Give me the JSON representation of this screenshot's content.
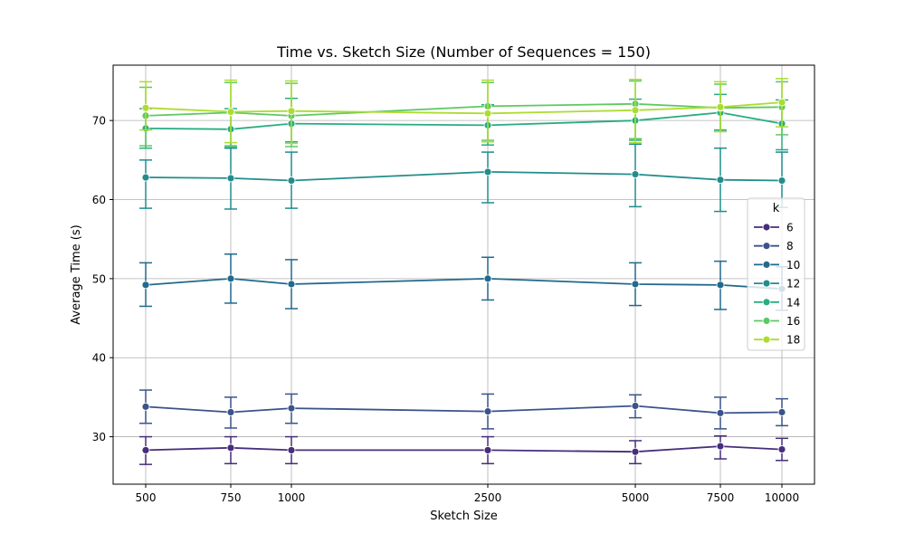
{
  "chart_data": {
    "type": "line",
    "title": "Time vs. Sketch Size (Number of Sequences = 150)",
    "xlabel": "Sketch Size",
    "ylabel": "Average Time (s)",
    "x": [
      "500",
      "750",
      "1000",
      "2500",
      "5000",
      "7500",
      "10000"
    ],
    "ylim": [
      24.0,
      77.0
    ],
    "yticks": [
      30,
      40,
      50,
      60,
      70
    ],
    "grid": true,
    "legend": {
      "title": "k",
      "placement": "right"
    },
    "series": [
      {
        "name": "6",
        "color": "#440154",
        "line_color": "#472d7b",
        "values": [
          28.3,
          28.6,
          28.3,
          28.3,
          28.1,
          28.8,
          28.4
        ],
        "err": [
          [
            26.5,
            30.0
          ],
          [
            26.6,
            30.0
          ],
          [
            26.6,
            30.0
          ],
          [
            26.6,
            30.0
          ],
          [
            26.6,
            29.5
          ],
          [
            27.2,
            30.1
          ],
          [
            27.0,
            29.8
          ]
        ]
      },
      {
        "name": "8",
        "color": "#3b528b",
        "values": [
          33.8,
          33.1,
          33.6,
          33.2,
          33.9,
          33.0,
          33.1
        ],
        "err": [
          [
            31.7,
            35.9
          ],
          [
            31.1,
            35.0
          ],
          [
            31.7,
            35.4
          ],
          [
            31.0,
            35.4
          ],
          [
            32.4,
            35.3
          ],
          [
            31.0,
            35.0
          ],
          [
            31.4,
            34.8
          ]
        ]
      },
      {
        "name": "10",
        "color": "#21698d",
        "values": [
          49.2,
          50.0,
          49.3,
          50.0,
          49.3,
          49.2,
          48.7
        ],
        "err": [
          [
            46.5,
            52.0
          ],
          [
            46.9,
            53.1
          ],
          [
            46.2,
            52.4
          ],
          [
            47.3,
            52.7
          ],
          [
            46.6,
            52.0
          ],
          [
            46.1,
            52.2
          ],
          [
            46.0,
            51.5
          ]
        ]
      },
      {
        "name": "12",
        "color": "#218d8c",
        "values": [
          62.8,
          62.7,
          62.4,
          63.5,
          63.2,
          62.5,
          62.4
        ],
        "err": [
          [
            58.9,
            65.0
          ],
          [
            58.8,
            66.5
          ],
          [
            58.9,
            66.0
          ],
          [
            59.6,
            66.0
          ],
          [
            59.1,
            67.0
          ],
          [
            58.5,
            66.5
          ],
          [
            59.0,
            66.0
          ]
        ]
      },
      {
        "name": "14",
        "color": "#27ad81",
        "values": [
          69.0,
          68.9,
          69.6,
          69.4,
          70.0,
          71.0,
          69.6
        ],
        "err": [
          [
            66.5,
            71.5
          ],
          [
            66.7,
            71.5
          ],
          [
            67.3,
            72.8
          ],
          [
            66.9,
            72.0
          ],
          [
            67.5,
            72.7
          ],
          [
            68.8,
            73.3
          ],
          [
            66.3,
            72.6
          ]
        ]
      },
      {
        "name": "16",
        "color": "#5ec962",
        "values": [
          70.6,
          71.0,
          70.6,
          71.8,
          72.1,
          71.6,
          71.7
        ],
        "err": [
          [
            66.8,
            74.2
          ],
          [
            66.8,
            74.8
          ],
          [
            66.7,
            74.7
          ],
          [
            67.5,
            74.8
          ],
          [
            67.7,
            75.0
          ],
          [
            68.6,
            74.6
          ],
          [
            68.2,
            74.9
          ]
        ]
      },
      {
        "name": "18",
        "color": "#addc30",
        "values": [
          71.6,
          71.1,
          71.2,
          70.9,
          71.3,
          71.7,
          72.3
        ],
        "err": [
          [
            68.8,
            74.9
          ],
          [
            67.2,
            75.1
          ],
          [
            67.1,
            75.0
          ],
          [
            67.3,
            75.1
          ],
          [
            67.2,
            75.2
          ],
          [
            68.6,
            74.9
          ],
          [
            69.2,
            75.3
          ]
        ]
      }
    ]
  }
}
